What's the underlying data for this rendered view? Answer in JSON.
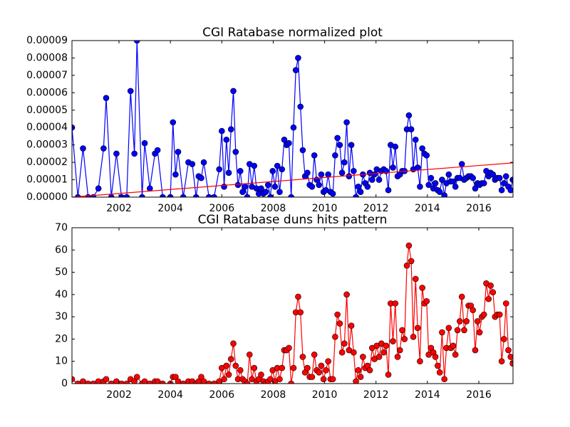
{
  "chart_data": [
    {
      "type": "line",
      "title": "CGI Ratabase normalized plot",
      "xlim": [
        2000.17,
        2017.33
      ],
      "xticks": [
        2002,
        2004,
        2006,
        2008,
        2010,
        2012,
        2014,
        2016
      ],
      "ylim": [
        0,
        9e-05
      ],
      "yticks": [
        {
          "value": 0,
          "label": "0.00000"
        },
        {
          "value": 1e-05,
          "label": "0.00001"
        },
        {
          "value": 2e-05,
          "label": "0.00002"
        },
        {
          "value": 3e-05,
          "label": "0.00003"
        },
        {
          "value": 4e-05,
          "label": "0.00004"
        },
        {
          "value": 5e-05,
          "label": "0.00005"
        },
        {
          "value": 6e-05,
          "label": "0.00006"
        },
        {
          "value": 7e-05,
          "label": "0.00007"
        },
        {
          "value": 8e-05,
          "label": "0.00008"
        },
        {
          "value": 9e-05,
          "label": "0.00009"
        }
      ],
      "series": [
        {
          "color": "#0000ff",
          "markers": true,
          "x": [
            2000.17,
            2000.4,
            2000.6,
            2000.8,
            2001.0,
            2001.2,
            2001.4,
            2001.5,
            2001.7,
            2001.9,
            2002.1,
            2002.3,
            2002.45,
            2002.6,
            2002.7,
            2002.9,
            2003.0,
            2003.2,
            2003.4,
            2003.5,
            2003.7,
            2004.0,
            2004.1,
            2004.2,
            2004.3,
            2004.5,
            2004.7,
            2004.85,
            2005.0,
            2005.1,
            2005.2,
            2005.3,
            2005.5,
            2005.7,
            2005.9,
            2006.0,
            2006.09,
            2006.18,
            2006.27,
            2006.36,
            2006.45,
            2006.54,
            2006.63,
            2006.72,
            2006.81,
            2006.9,
            2006.99,
            2007.08,
            2007.17,
            2007.26,
            2007.35,
            2007.44,
            2007.53,
            2007.62,
            2007.71,
            2007.8,
            2007.89,
            2007.98,
            2008.07,
            2008.16,
            2008.25,
            2008.34,
            2008.43,
            2008.52,
            2008.61,
            2008.7,
            2008.79,
            2008.88,
            2008.97,
            2009.06,
            2009.15,
            2009.24,
            2009.33,
            2009.42,
            2009.51,
            2009.6,
            2009.69,
            2009.78,
            2009.87,
            2009.96,
            2010.05,
            2010.14,
            2010.23,
            2010.32,
            2010.41,
            2010.5,
            2010.59,
            2010.68,
            2010.77,
            2010.86,
            2010.95,
            2011.04,
            2011.13,
            2011.22,
            2011.31,
            2011.4,
            2011.49,
            2011.58,
            2011.67,
            2011.76,
            2011.85,
            2011.94,
            2012.03,
            2012.12,
            2012.21,
            2012.3,
            2012.39,
            2012.48,
            2012.57,
            2012.66,
            2012.75,
            2012.84,
            2012.93,
            2013.02,
            2013.11,
            2013.2,
            2013.28,
            2013.37,
            2013.45,
            2013.54,
            2013.62,
            2013.71,
            2013.8,
            2013.88,
            2013.97,
            2014.05,
            2014.14,
            2014.23,
            2014.31,
            2014.4,
            2014.48,
            2014.57,
            2014.66,
            2014.74,
            2014.83,
            2014.91,
            2015.0,
            2015.09,
            2015.17,
            2015.26,
            2015.34,
            2015.43,
            2015.52,
            2015.6,
            2015.69,
            2015.77,
            2015.86,
            2015.95,
            2016.03,
            2016.12,
            2016.2,
            2016.29,
            2016.38,
            2016.46,
            2016.55,
            2016.63,
            2016.72,
            2016.81,
            2016.89,
            2016.98,
            2017.06,
            2017.15,
            2017.24,
            2017.32
          ],
          "values": [
            4e-05,
            0,
            2.8e-05,
            0,
            0,
            5e-06,
            2.8e-05,
            5.7e-05,
            0,
            2.5e-05,
            0,
            0,
            6.1e-05,
            2.5e-05,
            9e-05,
            0,
            3.1e-05,
            5e-06,
            2.5e-05,
            2.7e-05,
            0,
            0,
            4.3e-05,
            1.3e-05,
            2.6e-05,
            0,
            2e-05,
            1.9e-05,
            0,
            1.2e-05,
            1.1e-05,
            2e-05,
            0,
            0,
            1.6e-05,
            3.8e-05,
            6e-06,
            3.3e-05,
            1.4e-05,
            3.9e-05,
            6.1e-05,
            2.6e-05,
            7e-06,
            1.5e-05,
            3e-06,
            6e-06,
            0,
            1.9e-05,
            6e-06,
            1.8e-05,
            5e-06,
            2e-06,
            5e-06,
            2e-06,
            3e-06,
            7e-06,
            0,
            1.5e-05,
            6e-06,
            1.8e-05,
            3e-06,
            1.6e-05,
            3.3e-05,
            3e-05,
            3.1e-05,
            0,
            4e-05,
            7.3e-05,
            8e-05,
            5.2e-05,
            2.7e-05,
            1.2e-05,
            1.4e-05,
            7e-06,
            6e-06,
            2.4e-05,
            1e-05,
            7e-06,
            1.3e-05,
            3e-06,
            4e-06,
            1.3e-05,
            3e-06,
            2e-06,
            2.4e-05,
            3.4e-05,
            3e-05,
            1.4e-05,
            2e-05,
            4.3e-05,
            1.2e-05,
            3e-05,
            1.5e-05,
            0,
            6e-06,
            3e-06,
            1.3e-05,
            8e-06,
            6e-06,
            1.4e-05,
            1e-05,
            1.3e-05,
            1.6e-05,
            1e-05,
            1.5e-05,
            1.6e-05,
            1.5e-05,
            4e-06,
            3e-05,
            1.7e-05,
            2.9e-05,
            1.2e-05,
            1.3e-05,
            1.5e-05,
            1.5e-05,
            3.9e-05,
            4.7e-05,
            3.9e-05,
            1.6e-05,
            3.3e-05,
            1.7e-05,
            6e-06,
            2.8e-05,
            2.5e-05,
            2.4e-05,
            7e-06,
            1.1e-05,
            5e-06,
            8e-06,
            4e-06,
            3e-06,
            1e-05,
            1e-06,
            8e-06,
            1.3e-05,
            9e-06,
            9e-06,
            6e-06,
            1.1e-05,
            1.1e-05,
            1.9e-05,
            1e-05,
            1.1e-05,
            1.2e-05,
            1.2e-05,
            1.1e-05,
            5e-06,
            8e-06,
            7e-06,
            8e-06,
            8e-06,
            1.5e-05,
            1.2e-05,
            1.4e-05,
            1.3e-05,
            1e-05,
            1.1e-05,
            1.1e-05,
            4e-06,
            8e-06,
            1.2e-05,
            6e-06,
            4e-06,
            1e-05
          ]
        },
        {
          "color": "#ff0000",
          "markers": false,
          "x": [
            2000.17,
            2017.33
          ],
          "values": [
            0,
            1.97e-05
          ]
        }
      ]
    },
    {
      "type": "line",
      "title": "CGI Ratabase duns hits pattern",
      "xlim": [
        2000.17,
        2017.33
      ],
      "xticks": [
        2002,
        2004,
        2006,
        2008,
        2010,
        2012,
        2014,
        2016
      ],
      "ylim": [
        0,
        70
      ],
      "yticks": [
        0,
        10,
        20,
        30,
        40,
        50,
        60,
        70
      ],
      "series": [
        {
          "color": "#ff0000",
          "markers": true,
          "x": [
            2000.17,
            2000.4,
            2000.6,
            2000.8,
            2001.0,
            2001.2,
            2001.4,
            2001.5,
            2001.7,
            2001.9,
            2002.1,
            2002.3,
            2002.45,
            2002.6,
            2002.7,
            2002.9,
            2003.0,
            2003.2,
            2003.4,
            2003.5,
            2003.7,
            2004.0,
            2004.1,
            2004.2,
            2004.3,
            2004.5,
            2004.7,
            2004.85,
            2005.0,
            2005.1,
            2005.2,
            2005.3,
            2005.5,
            2005.7,
            2005.9,
            2006.0,
            2006.09,
            2006.18,
            2006.27,
            2006.36,
            2006.45,
            2006.54,
            2006.63,
            2006.72,
            2006.81,
            2006.9,
            2006.99,
            2007.08,
            2007.17,
            2007.26,
            2007.35,
            2007.44,
            2007.53,
            2007.62,
            2007.71,
            2007.8,
            2007.89,
            2007.98,
            2008.07,
            2008.16,
            2008.25,
            2008.34,
            2008.43,
            2008.52,
            2008.61,
            2008.7,
            2008.79,
            2008.88,
            2008.97,
            2009.06,
            2009.15,
            2009.24,
            2009.33,
            2009.42,
            2009.51,
            2009.6,
            2009.69,
            2009.78,
            2009.87,
            2009.96,
            2010.05,
            2010.14,
            2010.23,
            2010.32,
            2010.41,
            2010.5,
            2010.59,
            2010.68,
            2010.77,
            2010.86,
            2010.95,
            2011.04,
            2011.13,
            2011.22,
            2011.31,
            2011.4,
            2011.49,
            2011.58,
            2011.67,
            2011.76,
            2011.85,
            2011.94,
            2012.03,
            2012.12,
            2012.21,
            2012.3,
            2012.39,
            2012.48,
            2012.57,
            2012.66,
            2012.75,
            2012.84,
            2012.93,
            2013.02,
            2013.11,
            2013.2,
            2013.28,
            2013.37,
            2013.45,
            2013.54,
            2013.62,
            2013.71,
            2013.8,
            2013.88,
            2013.97,
            2014.05,
            2014.14,
            2014.23,
            2014.31,
            2014.4,
            2014.48,
            2014.57,
            2014.66,
            2014.74,
            2014.83,
            2014.91,
            2015.0,
            2015.09,
            2015.17,
            2015.26,
            2015.34,
            2015.43,
            2015.52,
            2015.6,
            2015.69,
            2015.77,
            2015.86,
            2015.95,
            2016.03,
            2016.12,
            2016.2,
            2016.29,
            2016.38,
            2016.46,
            2016.55,
            2016.63,
            2016.72,
            2016.81,
            2016.89,
            2016.98,
            2017.06,
            2017.15,
            2017.24,
            2017.32
          ],
          "values": [
            2,
            0,
            1,
            0,
            0,
            1,
            1,
            2,
            0,
            1,
            0,
            0,
            2,
            1,
            3,
            0,
            1,
            0,
            1,
            1,
            0,
            0,
            3,
            3,
            1,
            0,
            1,
            1,
            0,
            1,
            3,
            1,
            0,
            0,
            1,
            7,
            2,
            8,
            4,
            11,
            18,
            8,
            2,
            6,
            2,
            1,
            0,
            13,
            2,
            7,
            1,
            2,
            4,
            1,
            0,
            1,
            2,
            6,
            1,
            7,
            2,
            7,
            15,
            15,
            16,
            0,
            7,
            32,
            39,
            32,
            12,
            5,
            7,
            3,
            3,
            13,
            6,
            5,
            8,
            2,
            6,
            10,
            2,
            2,
            21,
            31,
            27,
            14,
            18,
            40,
            15,
            26,
            14,
            1,
            6,
            3,
            12,
            7,
            8,
            6,
            16,
            11,
            17,
            12,
            18,
            14,
            17,
            4,
            36,
            19,
            36,
            12,
            15,
            24,
            20,
            53,
            62,
            55,
            21,
            47,
            25,
            10,
            43,
            36,
            37,
            13,
            16,
            14,
            12,
            8,
            5,
            23,
            2,
            16,
            25,
            16,
            17,
            13,
            24,
            28,
            39,
            24,
            28,
            35,
            35,
            33,
            15,
            28,
            23,
            30,
            31,
            45,
            38,
            44,
            41,
            30,
            31,
            31,
            10,
            20,
            36,
            15,
            12,
            9
          ]
        }
      ]
    }
  ]
}
